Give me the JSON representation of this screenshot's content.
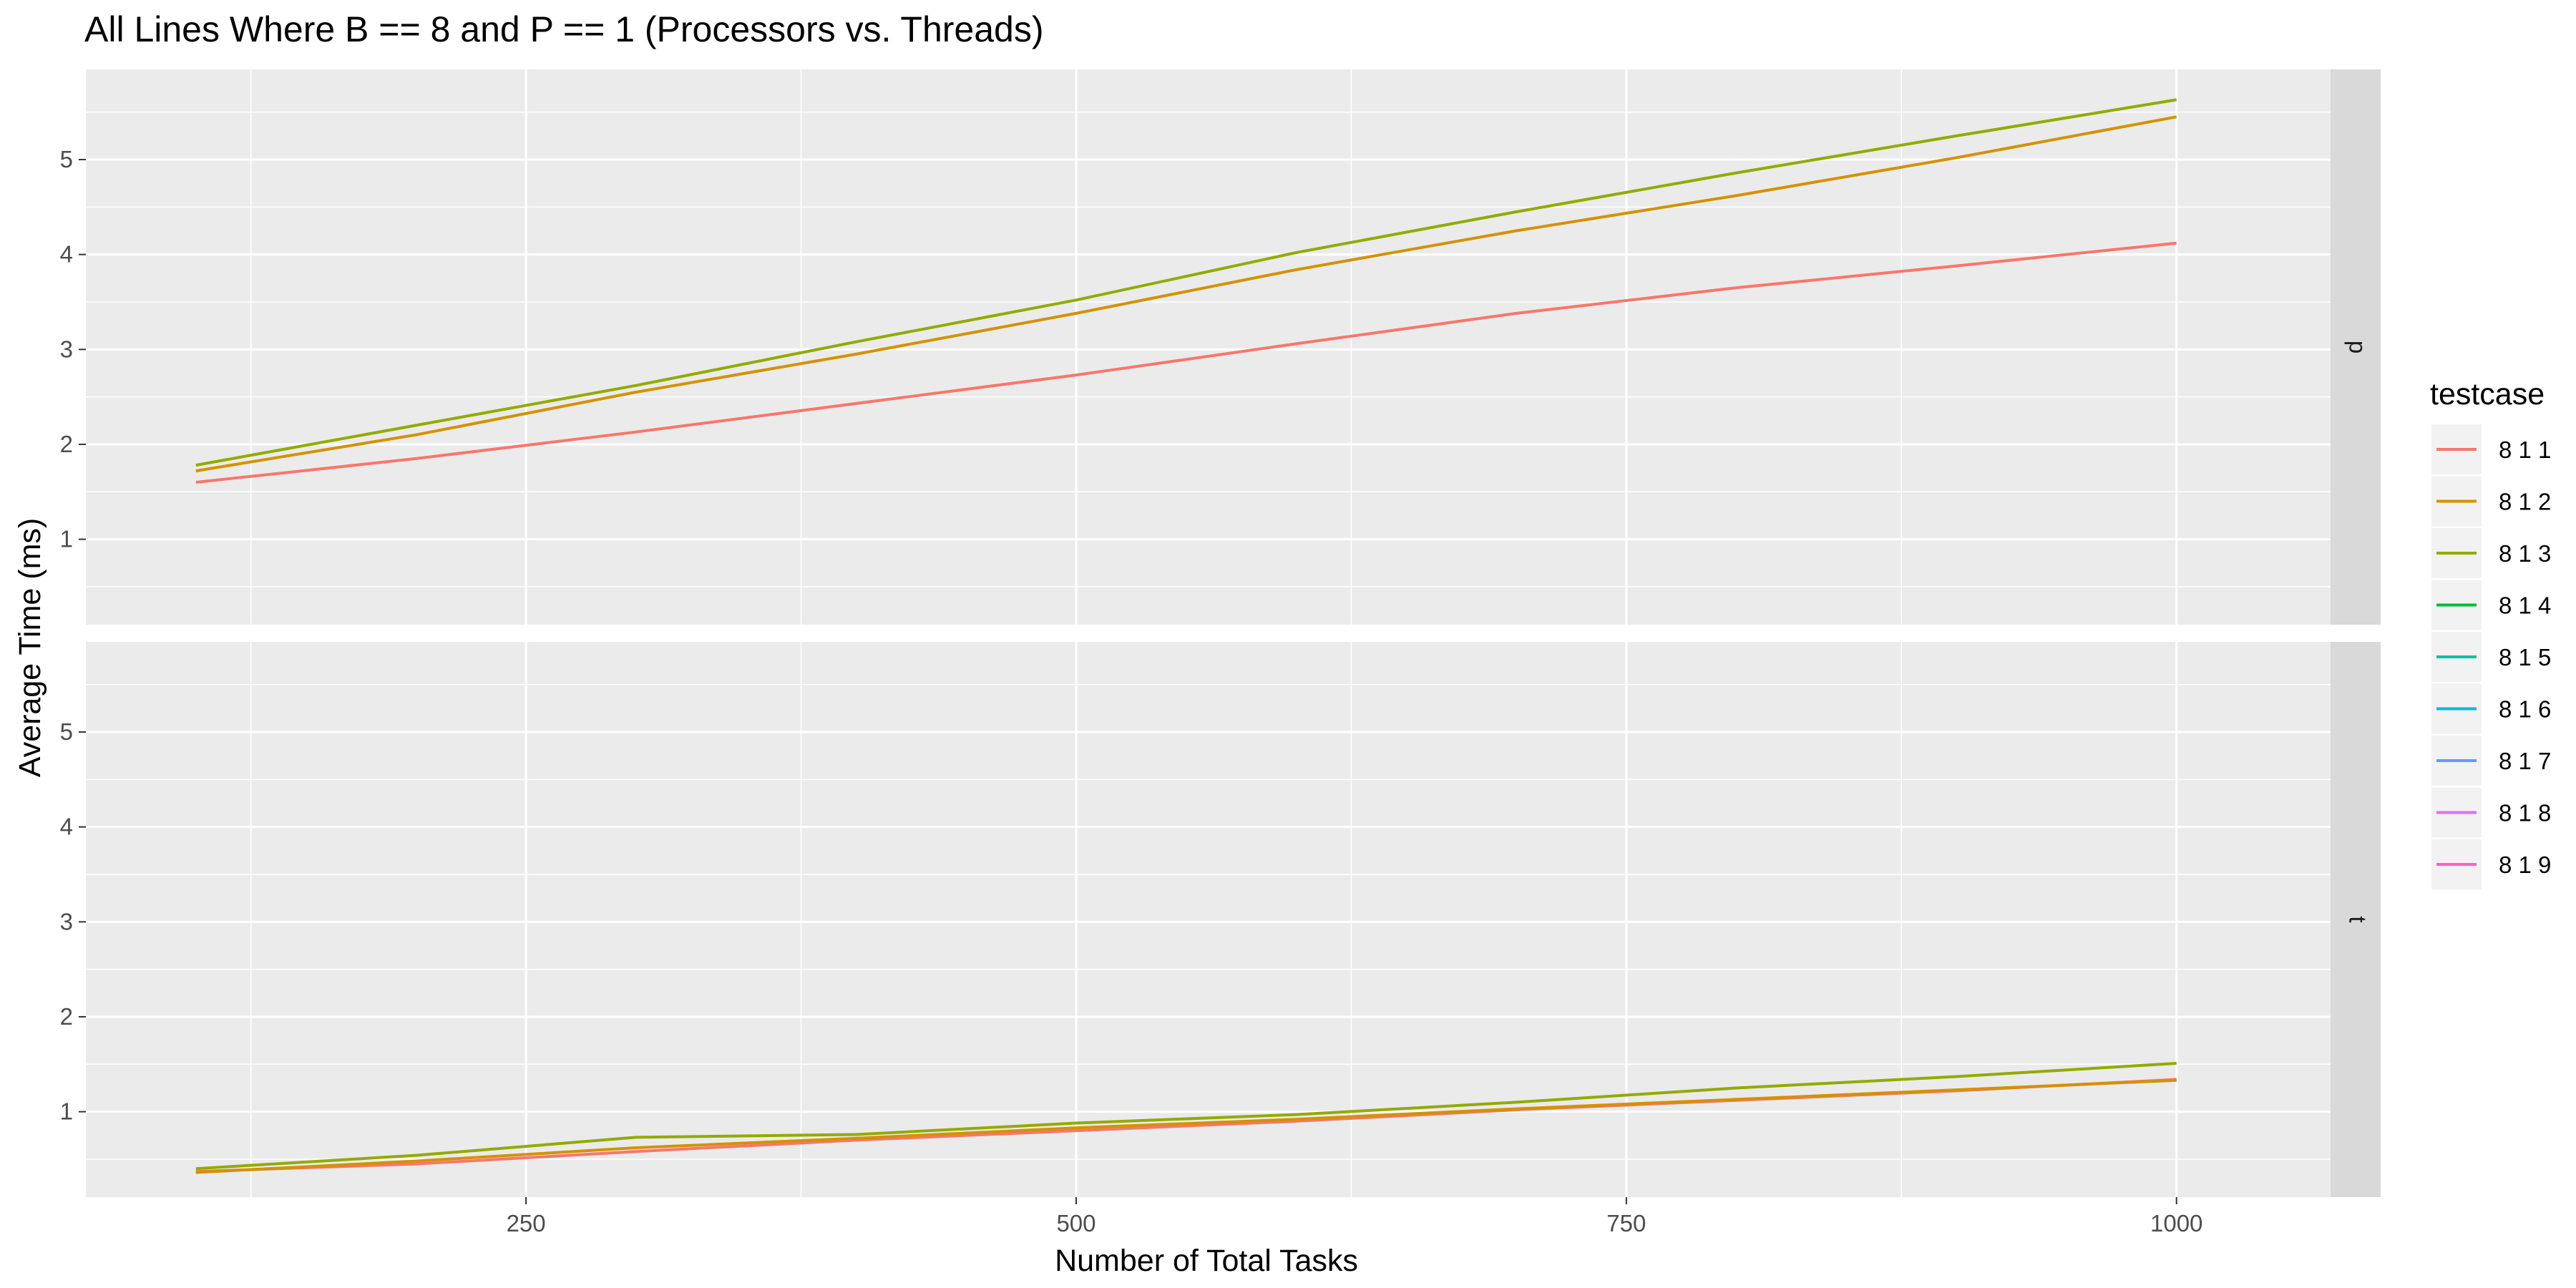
{
  "chart_data": {
    "type": "line",
    "title": "All Lines Where B == 8 and P == 1 (Processors vs. Threads)",
    "xlabel": "Number of Total Tasks",
    "ylabel": "Average Time (ms)",
    "xlim": [
      50,
      1070
    ],
    "ylim": [
      0.1,
      5.95
    ],
    "x_ticks": [
      250,
      500,
      750,
      1000
    ],
    "y_ticks": [
      1,
      2,
      3,
      4,
      5
    ],
    "grid": true,
    "legend": {
      "title": "testcase",
      "placement": "right",
      "entries": [
        {
          "label": "8 1 1",
          "color": "#F8766D"
        },
        {
          "label": "8 1 2",
          "color": "#D39200"
        },
        {
          "label": "8 1 3",
          "color": "#93AA00"
        },
        {
          "label": "8 1 4",
          "color": "#00BA38"
        },
        {
          "label": "8 1 5",
          "color": "#00C19F"
        },
        {
          "label": "8 1 6",
          "color": "#00B9E3"
        },
        {
          "label": "8 1 7",
          "color": "#619CFF"
        },
        {
          "label": "8 1 8",
          "color": "#DB72FB"
        },
        {
          "label": "8 1 9",
          "color": "#FF61C3"
        }
      ]
    },
    "panels": [
      {
        "strip": "p",
        "series": [
          {
            "name": "8 1 1",
            "color": "#F8766D",
            "x": [
              100,
              200,
              300,
              400,
              500,
              600,
              700,
              800,
              900,
              1000
            ],
            "y": [
              1.6,
              1.85,
              2.13,
              2.43,
              2.73,
              3.06,
              3.38,
              3.65,
              3.88,
              4.12
            ]
          },
          {
            "name": "8 1 2",
            "color": "#D39200",
            "x": [
              100,
              200,
              300,
              400,
              500,
              600,
              700,
              800,
              900,
              1000
            ],
            "y": [
              1.72,
              2.1,
              2.55,
              2.95,
              3.38,
              3.84,
              4.25,
              4.62,
              5.02,
              5.45
            ]
          },
          {
            "name": "8 1 3",
            "color": "#93AA00",
            "x": [
              100,
              200,
              300,
              400,
              500,
              600,
              700,
              800,
              900,
              1000
            ],
            "y": [
              1.78,
              2.2,
              2.62,
              3.08,
              3.52,
              4.02,
              4.45,
              4.86,
              5.25,
              5.63
            ]
          }
        ]
      },
      {
        "strip": "t",
        "series": [
          {
            "name": "8 1 1",
            "color": "#F8766D",
            "x": [
              100,
              200,
              300,
              400,
              500,
              600,
              700,
              800,
              900,
              1000
            ],
            "y": [
              0.37,
              0.45,
              0.58,
              0.7,
              0.8,
              0.9,
              1.02,
              1.12,
              1.22,
              1.34
            ]
          },
          {
            "name": "8 1 2",
            "color": "#D39200",
            "x": [
              100,
              200,
              300,
              400,
              500,
              600,
              700,
              800,
              900,
              1000
            ],
            "y": [
              0.36,
              0.48,
              0.62,
              0.72,
              0.83,
              0.92,
              1.03,
              1.13,
              1.23,
              1.33
            ]
          },
          {
            "name": "8 1 3",
            "color": "#93AA00",
            "x": [
              100,
              200,
              300,
              400,
              500,
              600,
              700,
              800,
              900,
              1000
            ],
            "y": [
              0.4,
              0.54,
              0.73,
              0.76,
              0.88,
              0.97,
              1.1,
              1.25,
              1.37,
              1.51
            ]
          }
        ]
      }
    ]
  }
}
